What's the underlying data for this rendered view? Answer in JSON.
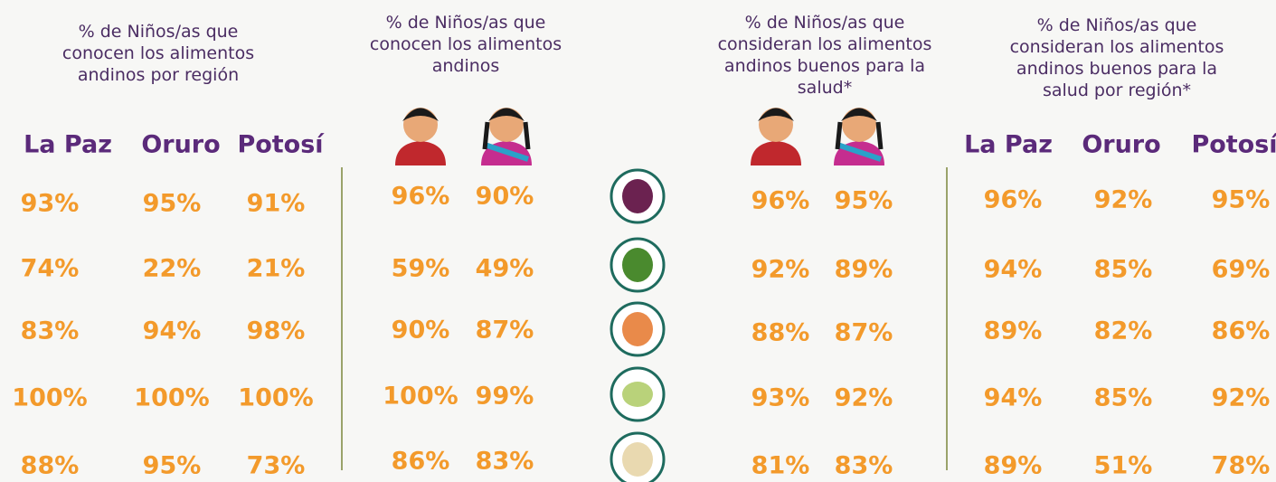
{
  "panels": [
    {
      "header": [
        "% de Niños/as que",
        "conocen los alimentos",
        "andinos por región"
      ],
      "columns": [
        "La Paz",
        "Oruro",
        "Potosí"
      ],
      "rows": [
        [
          "93%",
          "95%",
          "91%"
        ],
        [
          "74%",
          "22%",
          "21%"
        ],
        [
          "83%",
          "94%",
          "98%"
        ],
        [
          "100%",
          "100%",
          "100%"
        ],
        [
          "88%",
          "95%",
          "73%"
        ]
      ]
    },
    {
      "header": [
        "% de Niños/as que",
        "conocen los alimentos",
        "andinos"
      ],
      "rows": [
        [
          "96%",
          "90%"
        ],
        [
          "59%",
          "49%"
        ],
        [
          "90%",
          "87%"
        ],
        [
          "100%",
          "99%"
        ],
        [
          "86%",
          "83%"
        ]
      ]
    },
    {
      "header": [
        "% de Niños/as que",
        "consideran los alimentos",
        "andinos buenos para la",
        "salud*"
      ],
      "rows": [
        [
          "96%",
          "95%"
        ],
        [
          "92%",
          "89%"
        ],
        [
          "88%",
          "87%"
        ],
        [
          "93%",
          "92%"
        ],
        [
          "81%",
          "83%"
        ]
      ]
    },
    {
      "header": [
        "% de Niños/as que",
        "consideran los alimentos",
        "andinos buenos para la",
        "salud por región*"
      ],
      "columns": [
        "La Paz",
        "Oruro",
        "Potosí"
      ],
      "rows": [
        [
          "96%",
          "92%",
          "95%"
        ],
        [
          "94%",
          "85%",
          "69%"
        ],
        [
          "89%",
          "82%",
          "86%"
        ],
        [
          "94%",
          "85%",
          "92%"
        ],
        [
          "89%",
          "51%",
          "78%"
        ]
      ]
    }
  ]
}
